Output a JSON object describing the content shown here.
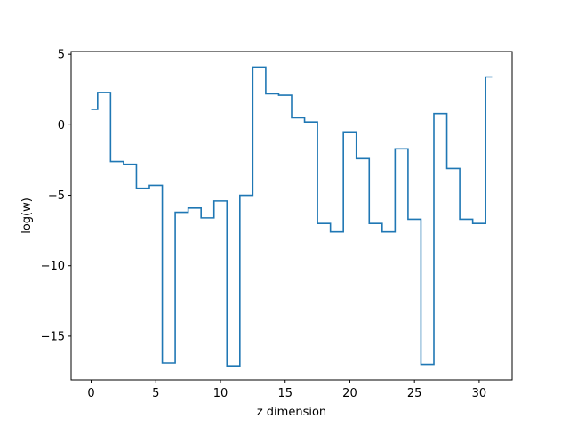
{
  "chart_data": {
    "type": "line",
    "drawstyle": "steps-mid",
    "title": "",
    "xlabel": "z dimension",
    "ylabel": "log(w)",
    "xlim": [
      -1.55,
      32.55
    ],
    "ylim": [
      -18.1,
      5.2
    ],
    "xticks": [
      0,
      5,
      10,
      15,
      20,
      25,
      30
    ],
    "yticks": [
      5,
      0,
      -5,
      -10,
      -15
    ],
    "ytick_labels": [
      "5",
      "0",
      "−5",
      "−10",
      "−15"
    ],
    "grid": false,
    "line_color": "#1f77b4",
    "series": [
      {
        "x": [
          0,
          1,
          2,
          3,
          4,
          5,
          6,
          7,
          8,
          9,
          10,
          11,
          12,
          13,
          14,
          15,
          16,
          17,
          18,
          19,
          20,
          21,
          22,
          23,
          24,
          25,
          26,
          27,
          28,
          29,
          30,
          31
        ],
        "values": [
          1.1,
          2.3,
          -2.6,
          -2.8,
          -4.5,
          -4.3,
          -16.9,
          -6.2,
          -5.9,
          -6.6,
          -5.4,
          -17.1,
          -5.0,
          4.1,
          2.2,
          2.1,
          0.5,
          0.2,
          -7.0,
          -7.6,
          -0.5,
          -2.4,
          -7.0,
          -7.6,
          -1.7,
          -6.7,
          -17.0,
          0.8,
          -3.1,
          -6.7,
          -7.0,
          3.4
        ]
      }
    ]
  }
}
